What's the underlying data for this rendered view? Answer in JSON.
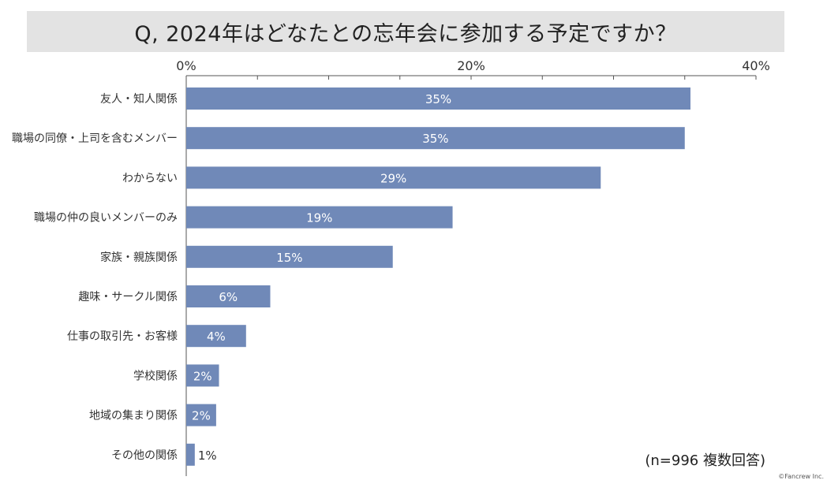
{
  "chart_data": {
    "type": "bar",
    "orientation": "horizontal",
    "title": "Q, 2024年はどなたとの忘年会に参加する予定ですか？",
    "categories": [
      "友人・知人関係",
      "職場の同僚・上司を含むメンバー",
      "わからない",
      "職場の仲の良いメンバーのみ",
      "家族・親族関係",
      "趣味・サークル関係",
      "仕事の取引先・お客様",
      "学校関係",
      "地域の集まり関係",
      "その他の関係"
    ],
    "values": [
      35.4,
      35.0,
      29.1,
      18.7,
      14.5,
      5.9,
      4.2,
      2.3,
      2.1,
      0.6
    ],
    "value_labels": [
      "35%",
      "35%",
      "29%",
      "19%",
      "15%",
      "6%",
      "4%",
      "2%",
      "2%",
      "1%"
    ],
    "xlim": [
      0,
      40
    ],
    "x_ticks": [
      "0%",
      "20%",
      "40%"
    ],
    "x_tick_values": [
      0,
      20,
      40
    ],
    "minor_tick_step": 5,
    "axis_position": "top",
    "bar_color": "#7089b8",
    "label_color_inside": "#ffffff",
    "label_color_outside": "#333333"
  },
  "note": "(n=996 複数回答)",
  "credit": "©Fancrew Inc."
}
